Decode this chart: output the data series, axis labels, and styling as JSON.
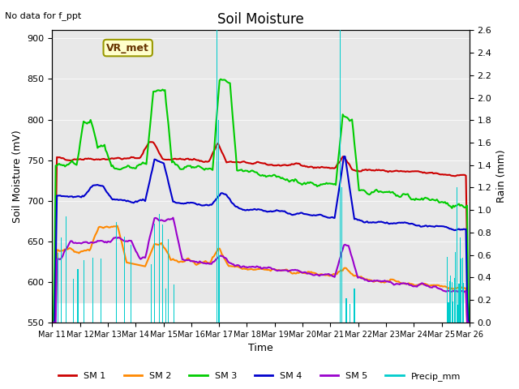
{
  "title": "Soil Moisture",
  "xlabel": "Time",
  "ylabel_left": "Soil Moisture (mV)",
  "ylabel_right": "Rain (mm)",
  "annotation_text": "No data for f_ppt",
  "legend_label": "VR_met",
  "ylim_left": [
    550,
    910
  ],
  "ylim_right": [
    0.0,
    2.6
  ],
  "yticks_left": [
    550,
    600,
    650,
    700,
    750,
    800,
    850,
    900
  ],
  "yticks_right": [
    0.0,
    0.2,
    0.4,
    0.6,
    0.8,
    1.0,
    1.2,
    1.4,
    1.6,
    1.8,
    2.0,
    2.2,
    2.4,
    2.6
  ],
  "xticklabels": [
    "Mar 11",
    "Mar 12",
    "Mar 13",
    "Mar 14",
    "Mar 15",
    "Mar 16",
    "Mar 17",
    "Mar 18",
    "Mar 19",
    "Mar 20",
    "Mar 21",
    "Mar 22",
    "Mar 23",
    "Mar 24",
    "Mar 25",
    "Mar 26"
  ],
  "colors": {
    "SM1": "#cc0000",
    "SM2": "#ff8800",
    "SM3": "#00cc00",
    "SM4": "#0000cc",
    "SM5": "#9900cc",
    "Precip": "#00cccc",
    "bg_band": "#e8e8e8"
  },
  "legend_entries": [
    {
      "label": "SM 1",
      "color": "#cc0000"
    },
    {
      "label": "SM 2",
      "color": "#ff8800"
    },
    {
      "label": "SM 3",
      "color": "#00cc00"
    },
    {
      "label": "SM 4",
      "color": "#0000cc"
    },
    {
      "label": "SM 5",
      "color": "#9900cc"
    },
    {
      "label": "Precip_mm",
      "color": "#00cccc"
    }
  ]
}
